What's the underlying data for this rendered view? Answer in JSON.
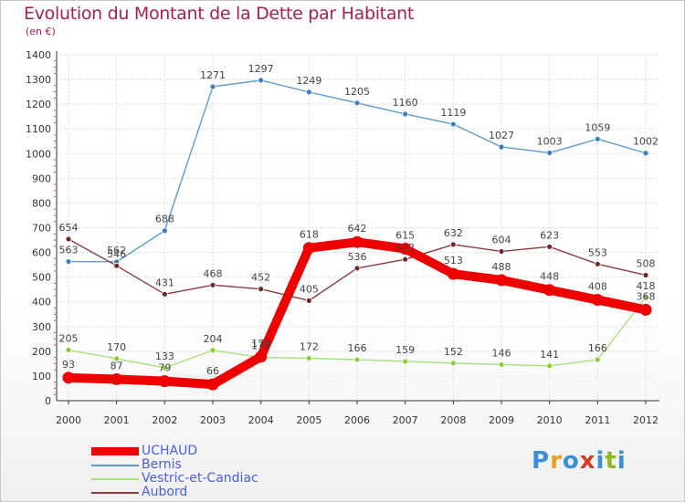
{
  "title": "Evolution du Montant de la Dette par Habitant",
  "unit": "(en €)",
  "logo": {
    "text": "Proxiti",
    "colors": [
      "#3a8fd8",
      "#e8a020",
      "#3a8fd8",
      "#d83a2a",
      "#3a8fd8",
      "#90b820",
      "#3a8fd8"
    ]
  },
  "chart_data": {
    "type": "line",
    "title": "Evolution du Montant de la Dette par Habitant",
    "ylabel": "(en €)",
    "xlabel": "",
    "ylim": [
      0,
      1400
    ],
    "yticks": [
      0,
      100,
      200,
      300,
      400,
      500,
      600,
      700,
      800,
      900,
      1000,
      1100,
      1200,
      1300,
      1400
    ],
    "x": [
      "2000",
      "2001",
      "2002",
      "2003",
      "2004",
      "2005",
      "2006",
      "2007",
      "2008",
      "2009",
      "2010",
      "2011",
      "2012"
    ],
    "grid": true,
    "legend_position": "bottom-left",
    "series": [
      {
        "name": "Bernis",
        "color": "#5b9bd5",
        "point": "#3a7fc1",
        "values": [
          563,
          562,
          688,
          1271,
          1297,
          1249,
          1205,
          1160,
          1119,
          1027,
          1003,
          1059,
          1002
        ]
      },
      {
        "name": "Vestric-et-Candiac",
        "color": "#a6e07a",
        "point": "#8ccc3c",
        "values": [
          205,
          170,
          133,
          204,
          175,
          172,
          166,
          159,
          152,
          146,
          141,
          166,
          418
        ]
      },
      {
        "name": "Aubord",
        "color": "#8c3c3c",
        "point": "#6e2a2a",
        "values": [
          654,
          546,
          431,
          468,
          452,
          405,
          536,
          572,
          632,
          604,
          623,
          553,
          508
        ]
      },
      {
        "name": "UCHAUD",
        "color": "#ee0000",
        "point": "#ee0000",
        "thick": true,
        "values": [
          93,
          87,
          79,
          66,
          178,
          618,
          642,
          615,
          513,
          488,
          448,
          408,
          368
        ]
      }
    ],
    "legend_order": [
      "UCHAUD",
      "Bernis",
      "Vestric-et-Candiac",
      "Aubord"
    ]
  }
}
